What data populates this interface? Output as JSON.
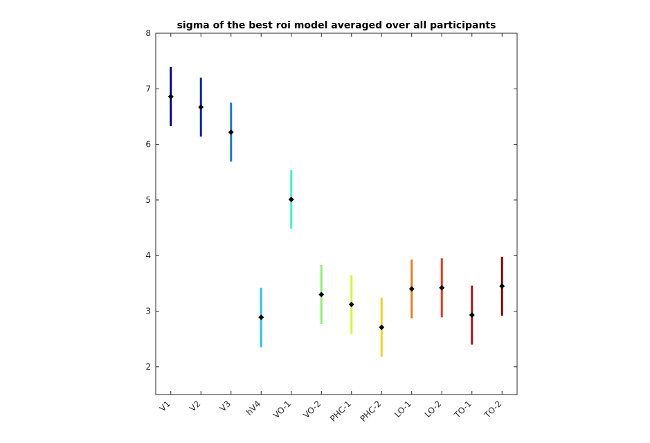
{
  "chart_data": {
    "type": "scatter",
    "title": "sigma of the best roi model averaged over all participants",
    "xlabel": "",
    "ylabel": "",
    "ylim": [
      1.5,
      8
    ],
    "yticks": [
      2,
      3,
      4,
      5,
      6,
      7,
      8
    ],
    "categories": [
      "V1",
      "V2",
      "V3",
      "hV4",
      "VO-1",
      "VO-2",
      "PHC-1",
      "PHC-2",
      "LO-1",
      "LO-2",
      "TO-1",
      "TO-2"
    ],
    "values": [
      6.86,
      6.67,
      6.22,
      2.89,
      5.01,
      3.3,
      3.12,
      2.71,
      3.4,
      3.42,
      2.93,
      3.45
    ],
    "error_low": [
      6.33,
      6.14,
      5.69,
      2.35,
      4.48,
      2.77,
      2.59,
      2.18,
      2.87,
      2.89,
      2.4,
      2.92
    ],
    "error_high": [
      7.39,
      7.2,
      6.75,
      3.42,
      5.54,
      3.83,
      3.65,
      3.24,
      3.93,
      3.95,
      3.46,
      3.98
    ],
    "colors": [
      "#00008f",
      "#0022b5",
      "#1778d8",
      "#22c8e6",
      "#3ef2d0",
      "#86f56a",
      "#d8f530",
      "#f0d21e",
      "#ee7a18",
      "#e33a14",
      "#b40f0f",
      "#800000"
    ],
    "marker_color": "#000000",
    "grid": false,
    "legend": "none"
  }
}
